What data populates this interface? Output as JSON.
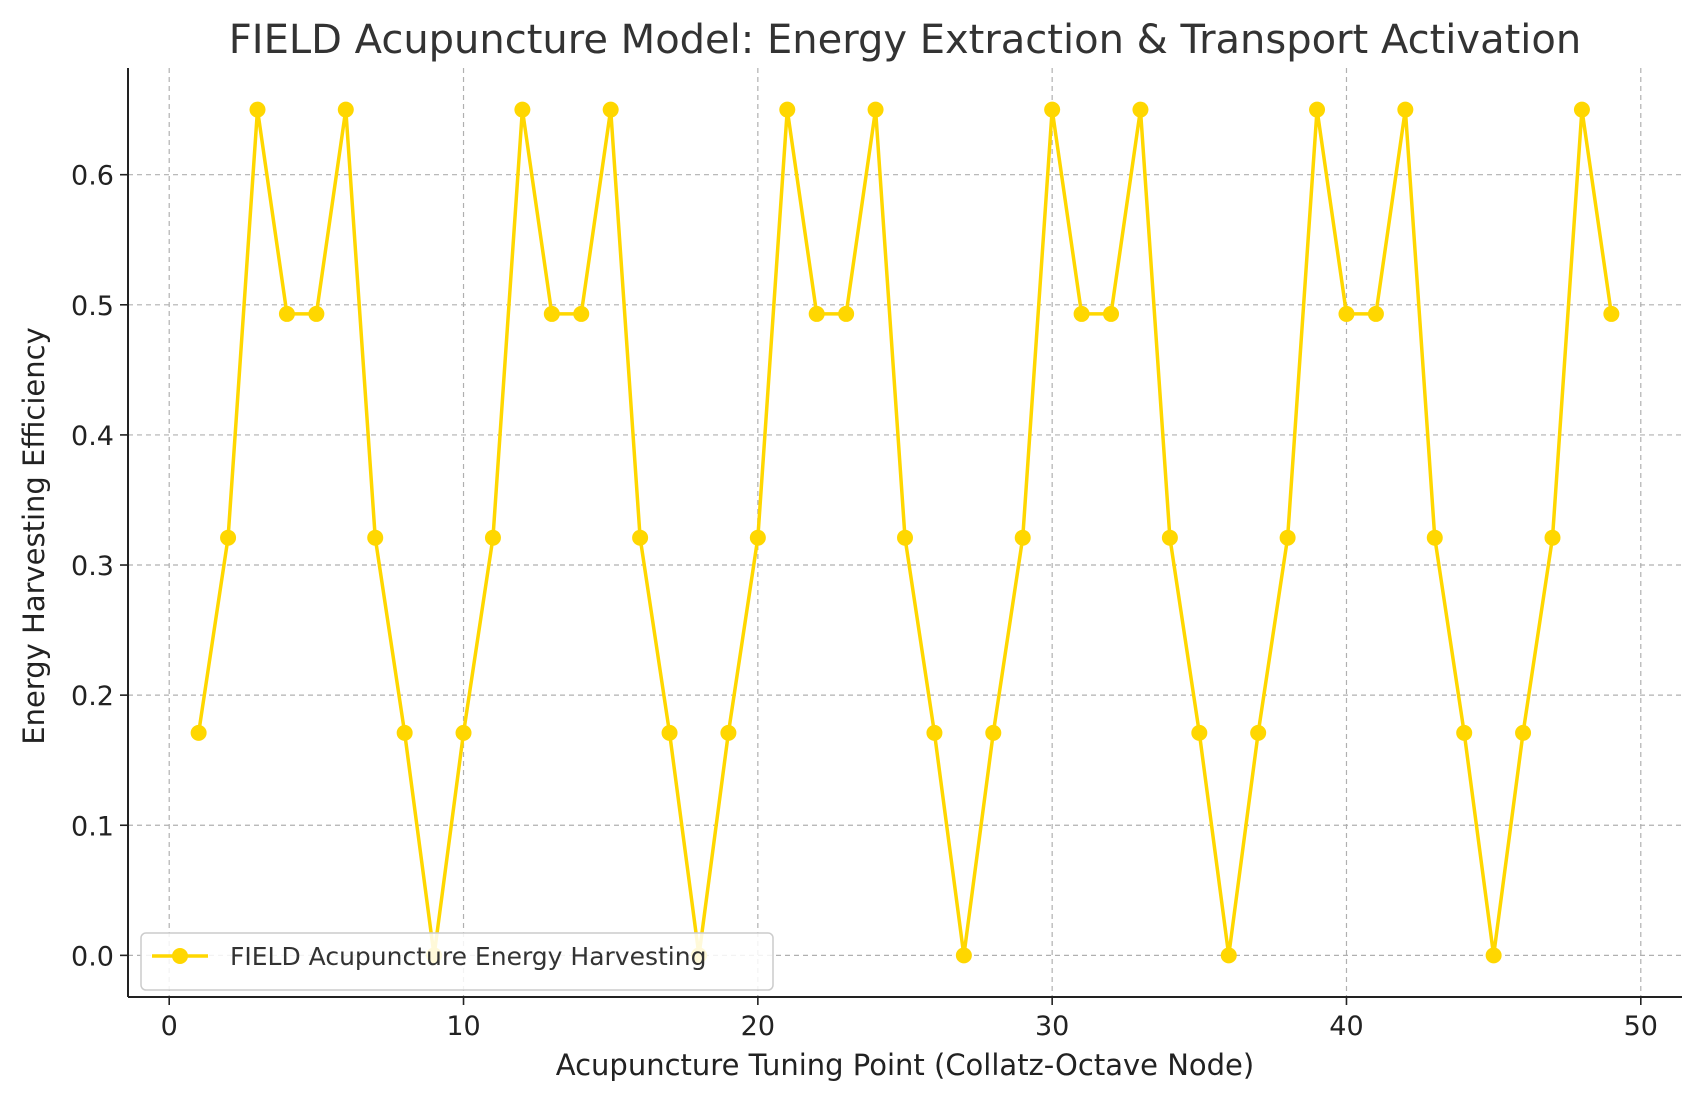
{
  "chart_data": {
    "type": "line",
    "title": "FIELD Acupuncture Model: Energy Extraction & Transport Activation",
    "xlabel": "Acupuncture Tuning Point (Collatz-Octave Node)",
    "ylabel": "Energy Harvesting Efficiency",
    "xlim": [
      -1.4,
      51.4
    ],
    "ylim": [
      -0.032,
      0.682
    ],
    "xticks": [
      0,
      10,
      20,
      30,
      40,
      50
    ],
    "yticks": [
      0.0,
      0.1,
      0.2,
      0.3,
      0.4,
      0.5,
      0.6
    ],
    "ytick_labels": [
      "0.0",
      "0.1",
      "0.2",
      "0.3",
      "0.4",
      "0.5",
      "0.6"
    ],
    "grid": true,
    "legend_position": "lower-left",
    "color": "#FFD700",
    "series": [
      {
        "name": "FIELD Acupuncture Energy Harvesting",
        "x": [
          1,
          2,
          3,
          4,
          5,
          6,
          7,
          8,
          9,
          10,
          11,
          12,
          13,
          14,
          15,
          16,
          17,
          18,
          19,
          20,
          21,
          22,
          23,
          24,
          25,
          26,
          27,
          28,
          29,
          30,
          31,
          32,
          33,
          34,
          35,
          36,
          37,
          38,
          39,
          40,
          41,
          42,
          43,
          44,
          45,
          46,
          47,
          48,
          49
        ],
        "y": [
          0.171,
          0.321,
          0.65,
          0.493,
          0.493,
          0.65,
          0.321,
          0.171,
          0.0,
          0.171,
          0.321,
          0.65,
          0.493,
          0.493,
          0.65,
          0.321,
          0.171,
          0.0,
          0.171,
          0.321,
          0.65,
          0.493,
          0.493,
          0.65,
          0.321,
          0.171,
          0.0,
          0.171,
          0.321,
          0.65,
          0.493,
          0.493,
          0.65,
          0.321,
          0.171,
          0.0,
          0.171,
          0.321,
          0.65,
          0.493,
          0.493,
          0.65,
          0.321,
          0.171,
          0.0,
          0.171,
          0.321,
          0.65,
          0.493
        ]
      }
    ]
  }
}
